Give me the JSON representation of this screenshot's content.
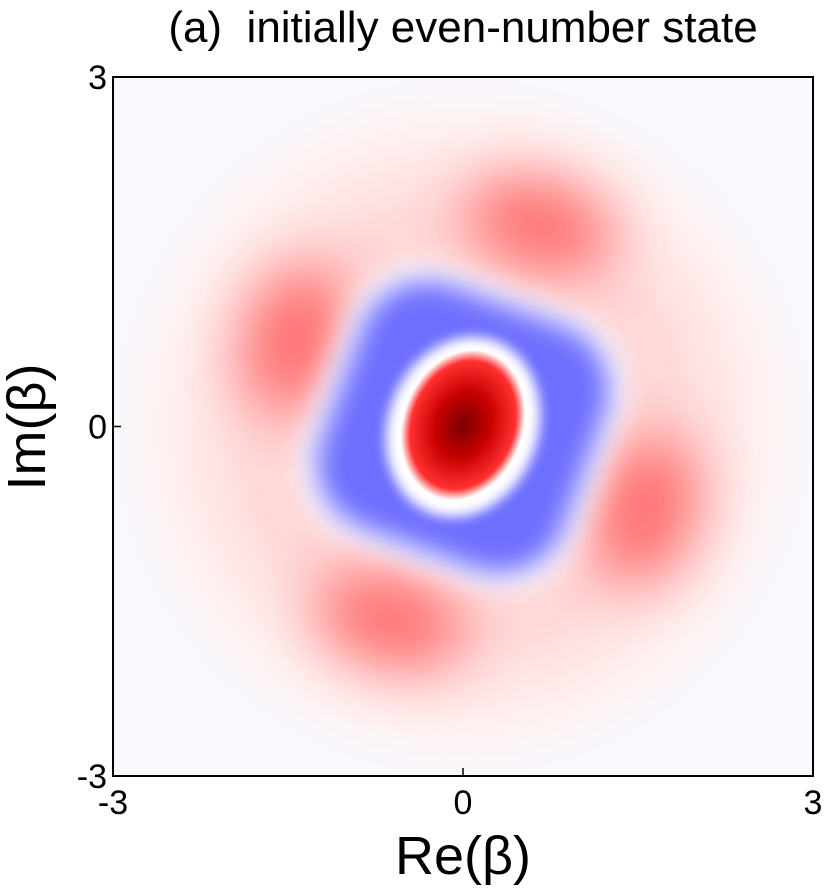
{
  "chart_data": {
    "type": "heatmap",
    "title": "(a)  initially even-number state",
    "x_label": "Re(β)",
    "y_label": "Im(β)",
    "xlim": [
      -3,
      3
    ],
    "ylim": [
      -3,
      3
    ],
    "xticks": [
      -3,
      0,
      3
    ],
    "yticks": [
      -3,
      0,
      3
    ]
  }
}
